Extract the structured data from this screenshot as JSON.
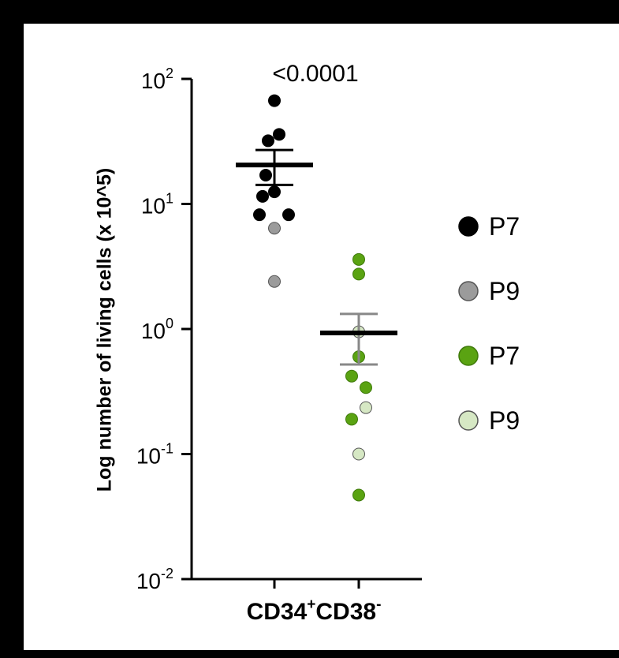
{
  "chart_data": {
    "type": "scatter",
    "ylabel": "Log number of living cells (x 10^5)",
    "yscale": "log",
    "ylim": [
      0.01,
      100
    ],
    "yticks": [
      {
        "base": "10",
        "exp": "2",
        "value": 100
      },
      {
        "base": "10",
        "exp": "1",
        "value": 10
      },
      {
        "base": "10",
        "exp": "0",
        "value": 1
      },
      {
        "base": "10",
        "exp": "-1",
        "value": 0.1
      },
      {
        "base": "10",
        "exp": "-2",
        "value": 0.01
      }
    ],
    "category_label": {
      "base1": "CD34",
      "sup1": "+",
      "base2": "CD38",
      "sup2": "-"
    },
    "p_value": "<0.0001",
    "colors": {
      "p7_dark": "#000000",
      "p9_dark": "#9b9b9b",
      "p7_green": "#5aa312",
      "p9_green": "#d6e8c4",
      "err_bar_green": "#888888"
    },
    "groups": [
      {
        "position": 1,
        "mean": 20.5,
        "sem_low": 14.2,
        "sem_high": 27.0,
        "mean_color": "#000000",
        "err_color": "#000000",
        "points": [
          {
            "y": 67,
            "series": "p7_dark",
            "dx": 0
          },
          {
            "y": 36,
            "series": "p7_dark",
            "dx": 6
          },
          {
            "y": 32,
            "series": "p7_dark",
            "dx": -8
          },
          {
            "y": 17,
            "series": "p7_dark",
            "dx": -11
          },
          {
            "y": 12.5,
            "series": "p7_dark",
            "dx": 0
          },
          {
            "y": 11.5,
            "series": "p7_dark",
            "dx": -15
          },
          {
            "y": 8.2,
            "series": "p7_dark",
            "dx": -19
          },
          {
            "y": 8.2,
            "series": "p7_dark",
            "dx": 18
          },
          {
            "y": 6.4,
            "series": "p9_dark",
            "dx": 0
          },
          {
            "y": 2.4,
            "series": "p9_dark",
            "dx": 0
          }
        ]
      },
      {
        "position": 2,
        "mean": 0.93,
        "sem_low": 0.52,
        "sem_high": 1.32,
        "mean_color": "#000000",
        "err_color": "#888888",
        "points": [
          {
            "y": 3.6,
            "series": "p7_green",
            "dx": 0
          },
          {
            "y": 2.75,
            "series": "p7_green",
            "dx": 0
          },
          {
            "y": 0.95,
            "series": "p9_green",
            "dx": 0
          },
          {
            "y": 0.6,
            "series": "p7_green",
            "dx": 0
          },
          {
            "y": 0.42,
            "series": "p7_green",
            "dx": -9
          },
          {
            "y": 0.34,
            "series": "p7_green",
            "dx": 9
          },
          {
            "y": 0.235,
            "series": "p9_green",
            "dx": 9
          },
          {
            "y": 0.19,
            "series": "p7_green",
            "dx": -9
          },
          {
            "y": 0.1,
            "series": "p9_green",
            "dx": 0
          },
          {
            "y": 0.047,
            "series": "p7_green",
            "dx": 0
          }
        ]
      }
    ],
    "legend": {
      "placement": "right",
      "items": [
        {
          "label": "P7",
          "series": "p7_dark"
        },
        {
          "label": "P9",
          "series": "p9_dark"
        },
        {
          "label": "P7",
          "series": "p7_green"
        },
        {
          "label": "P9",
          "series": "p9_green"
        }
      ]
    }
  }
}
